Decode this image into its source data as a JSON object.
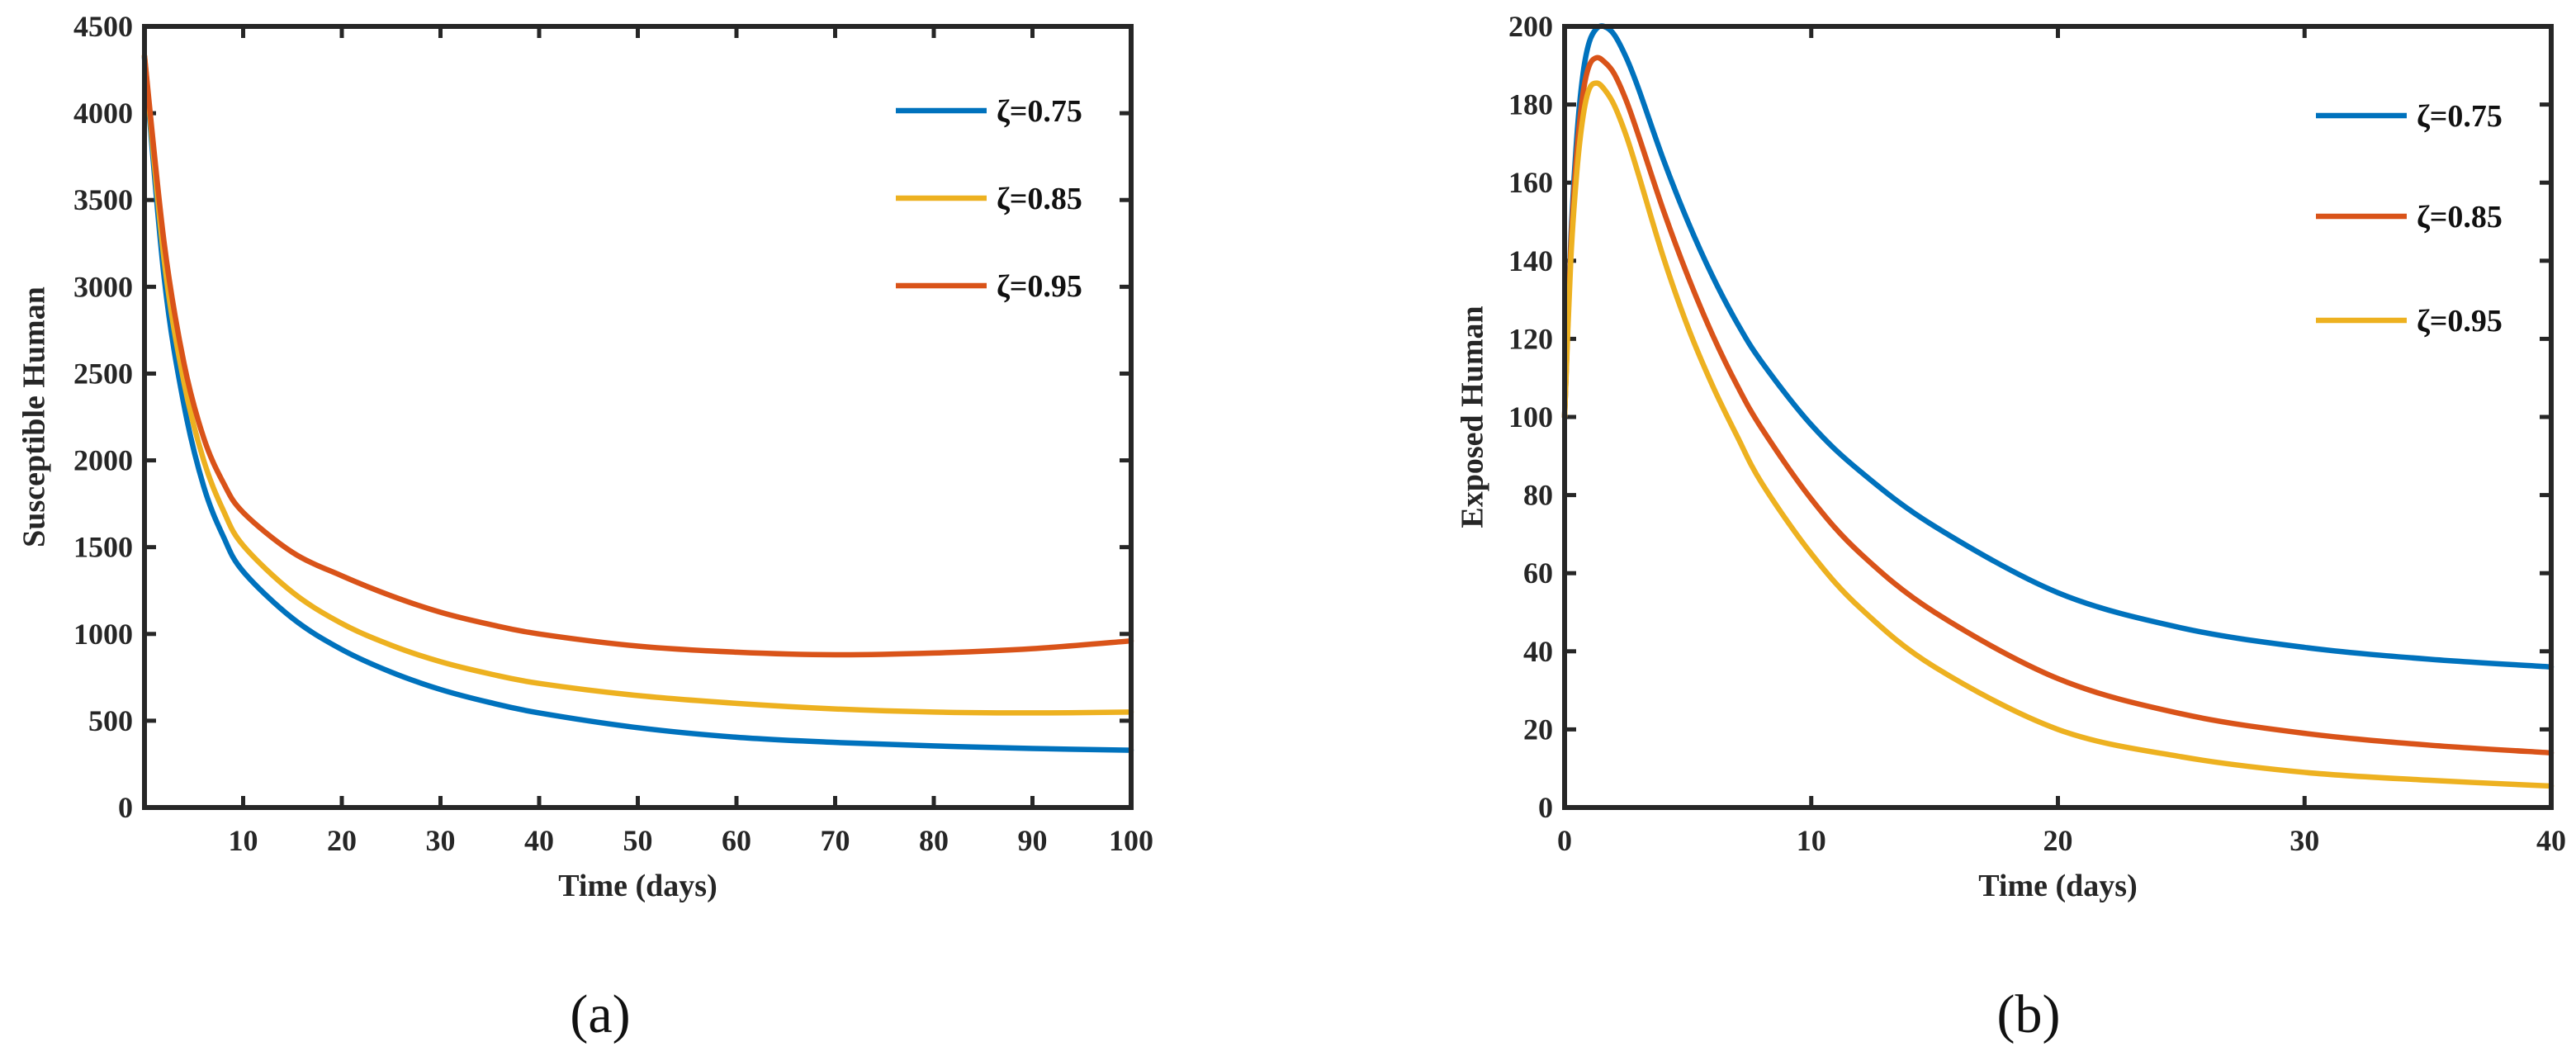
{
  "chart_data": [
    {
      "type": "line",
      "panel_label": "(a)",
      "xlabel": "Time (days)",
      "ylabel": "Susceptible Human",
      "xlim": [
        0,
        100
      ],
      "ylim": [
        0,
        4500
      ],
      "xticks": [
        10,
        20,
        30,
        40,
        50,
        60,
        70,
        80,
        90,
        100
      ],
      "yticks": [
        0,
        500,
        1000,
        1500,
        2000,
        2500,
        3000,
        3500,
        4000,
        4500
      ],
      "legend_position": "top-right",
      "x": [
        0,
        2,
        4,
        6,
        8,
        10,
        15,
        20,
        25,
        30,
        35,
        40,
        50,
        60,
        70,
        80,
        90,
        100
      ],
      "series": [
        {
          "name": "ζ=0.75",
          "color": "#0072BD",
          "values": [
            4320,
            3050,
            2320,
            1850,
            1560,
            1360,
            1090,
            910,
            780,
            680,
            605,
            545,
            460,
            405,
            375,
            355,
            340,
            330
          ]
        },
        {
          "name": "ζ=0.85",
          "color": "#EDB120",
          "values": [
            4330,
            3150,
            2450,
            2000,
            1710,
            1510,
            1240,
            1060,
            935,
            840,
            770,
            715,
            645,
            600,
            568,
            550,
            545,
            550
          ]
        },
        {
          "name": "ζ=0.95",
          "color": "#D95319",
          "values": [
            4330,
            3250,
            2560,
            2130,
            1870,
            1700,
            1470,
            1335,
            1220,
            1125,
            1055,
            1000,
            930,
            895,
            880,
            890,
            915,
            960
          ]
        }
      ]
    },
    {
      "type": "line",
      "panel_label": "(b)",
      "xlabel": "Time (days)",
      "ylabel": "Exposed Human",
      "xlim": [
        0,
        40
      ],
      "ylim": [
        0,
        200
      ],
      "xticks": [
        0,
        10,
        20,
        30,
        40
      ],
      "yticks": [
        0,
        20,
        40,
        60,
        80,
        100,
        120,
        140,
        160,
        180,
        200
      ],
      "legend_position": "top-right",
      "x": [
        0,
        0.25,
        0.5,
        0.75,
        1,
        1.3,
        1.6,
        2,
        2.5,
        3,
        4,
        5,
        6,
        7,
        8,
        10,
        12,
        15,
        20,
        25,
        30,
        35,
        40
      ],
      "series": [
        {
          "name": "ζ=0.75",
          "color": "#0072BD",
          "values": [
            100,
            145,
            172,
            188,
            196,
            199.5,
            200,
            198,
            192,
            184,
            166,
            150,
            136,
            124,
            114,
            98,
            86,
            72,
            55,
            46,
            41,
            38,
            36
          ]
        },
        {
          "name": "ζ=0.85",
          "color": "#D95319",
          "values": [
            100,
            143,
            168,
            183,
            190,
            192,
            191,
            188,
            181,
            172,
            153,
            136,
            121,
            108,
            97,
            79,
            65,
            50,
            33,
            24,
            19,
            16,
            14
          ]
        },
        {
          "name": "ζ=0.95",
          "color": "#EDB120",
          "values": [
            100,
            140,
            163,
            177,
            184,
            185.5,
            184,
            180,
            172,
            162,
            141,
            123,
            108,
            95,
            83,
            65,
            51,
            36,
            20,
            13,
            9,
            7,
            5.5
          ]
        }
      ]
    }
  ]
}
